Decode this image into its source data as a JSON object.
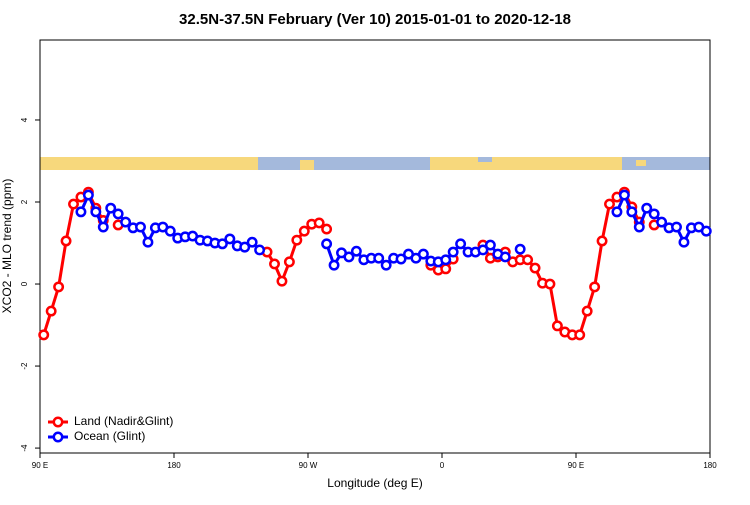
{
  "chart_data": {
    "type": "line",
    "title": "32.5N-37.5N February (Ver 10)   2015-01-01 to 2020-12-18",
    "x_label": "Longitude (deg E)",
    "y_label": "XCO2 - MLO trend (ppm)",
    "x": [
      92.5,
      97.5,
      102.5,
      107.5,
      112.5,
      117.5,
      122.5,
      127.5,
      132.5,
      137.5,
      142.5,
      147.5,
      152.5,
      157.5,
      162.5,
      167.5,
      172.5,
      177.5,
      182.5,
      187.5,
      192.5,
      197.5,
      202.5,
      207.5,
      212.5,
      217.5,
      222.5,
      227.5,
      232.5,
      237.5,
      242.5,
      247.5,
      252.5,
      257.5,
      262.5,
      267.5,
      272.5,
      277.5,
      282.5,
      287.5,
      292.5,
      297.5,
      302.5,
      307.5,
      312.5,
      317.5,
      322.5,
      327.5,
      332.5,
      337.5,
      342.5,
      347.5,
      352.5,
      357.5,
      362.5,
      367.5,
      372.5,
      377.5,
      382.5,
      387.5,
      392.5,
      397.5,
      402.5,
      407.5,
      412.5,
      417.5,
      422.5,
      427.5,
      432.5,
      437.5,
      442.5,
      447.5,
      452.5,
      457.5,
      462.5,
      467.5,
      472.5,
      477.5,
      482.5,
      487.5,
      492.5,
      497.5,
      502.5,
      507.5,
      512.5,
      517.5,
      522.5,
      527.5,
      532.5,
      537.5
    ],
    "series": [
      {
        "name": "Land (Nadir&Glint)",
        "color": "#ff0000",
        "values": [
          -1.24,
          -0.66,
          -0.07,
          1.05,
          1.95,
          2.12,
          2.24,
          1.85,
          1.55,
          null,
          1.44,
          null,
          null,
          null,
          null,
          null,
          null,
          null,
          null,
          null,
          null,
          null,
          null,
          null,
          null,
          null,
          null,
          null,
          null,
          null,
          0.78,
          0.49,
          0.07,
          0.54,
          1.07,
          1.29,
          1.46,
          1.49,
          1.34,
          null,
          null,
          null,
          null,
          null,
          null,
          null,
          null,
          null,
          null,
          null,
          null,
          null,
          0.46,
          0.34,
          0.37,
          0.61,
          null,
          null,
          null,
          0.95,
          0.63,
          0.66,
          0.78,
          0.54,
          0.59,
          0.59,
          0.39,
          0.02,
          0,
          -1.02,
          -1.17,
          -1.24,
          -1.24,
          -0.66,
          -0.07,
          1.05,
          1.95,
          2.12,
          2.24,
          1.88,
          1.51,
          null,
          1.44,
          null,
          null,
          null,
          null,
          null,
          null,
          null
        ]
      },
      {
        "name": "Ocean (Glint)",
        "color": "#0000ff",
        "values": [
          null,
          null,
          null,
          null,
          null,
          1.76,
          2.17,
          1.76,
          1.39,
          1.85,
          1.71,
          1.51,
          1.37,
          1.39,
          1.02,
          1.37,
          1.39,
          1.29,
          1.12,
          1.15,
          1.17,
          1.07,
          1.05,
          1.0,
          0.98,
          1.1,
          0.93,
          0.9,
          1.02,
          0.83,
          null,
          null,
          null,
          null,
          null,
          null,
          null,
          null,
          0.98,
          0.46,
          0.76,
          0.66,
          0.8,
          0.59,
          0.63,
          0.63,
          0.46,
          0.63,
          0.61,
          0.73,
          0.63,
          0.73,
          0.56,
          0.54,
          0.59,
          0.78,
          0.98,
          0.78,
          0.78,
          0.83,
          0.95,
          0.73,
          0.66,
          null,
          0.85,
          null,
          null,
          null,
          null,
          null,
          null,
          null,
          null,
          null,
          null,
          null,
          null,
          1.76,
          2.17,
          1.76,
          1.39,
          1.85,
          1.71,
          1.51,
          1.37,
          1.39,
          1.02,
          1.37,
          1.39,
          1.29
        ]
      }
    ],
    "xlim": [
      90,
      540
    ],
    "xticks": [
      {
        "value": 90,
        "label": "90 E"
      },
      180,
      {
        "value": 270,
        "label": "90 W"
      },
      {
        "value": 360,
        "label": "0"
      },
      {
        "value": 450,
        "label": "90 E"
      },
      {
        "value": 540,
        "label": "180"
      }
    ],
    "ylim": [
      -4.12,
      5.95
    ],
    "yticks": [
      -4,
      -2,
      0,
      2,
      4
    ],
    "legend": "bottom-left"
  }
}
